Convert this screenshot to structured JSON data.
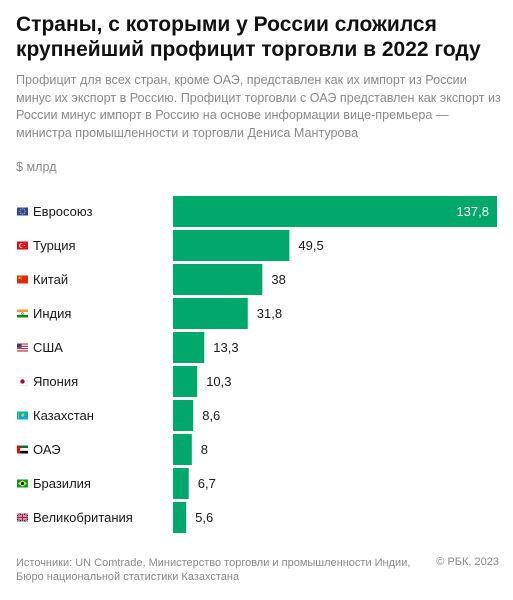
{
  "title": "Страны, с которыми у России сложился крупнейший профицит торговли в 2022 году",
  "subtitle": "Профицит для всех стран, кроме ОАЭ, представлен как их импорт из России минус их экспорт в Россию. Профицит торговли с ОАЭ представлен как экспорт из России минус импорт в Россию на основе информации вице-премьера — министра промышленности и торговли Дениса Мантурова",
  "unit_label": "$ млрд",
  "source": "Источники: UN Comtrade, Министерство торговли и промышленности Индии, Бюро национальной статистики Казахстана",
  "copyright": "© РБК, 2023",
  "colors": {
    "bar": "#00a86b"
  },
  "chart_data": {
    "type": "bar",
    "orientation": "horizontal",
    "categories": [
      "Евросоюз",
      "Турция",
      "Китай",
      "Индия",
      "США",
      "Япония",
      "Казахстан",
      "ОАЭ",
      "Бразилия",
      "Великобритания"
    ],
    "flag_icons": [
      "eu-flag-icon",
      "turkey-flag-icon",
      "china-flag-icon",
      "india-flag-icon",
      "usa-flag-icon",
      "japan-flag-icon",
      "kazakhstan-flag-icon",
      "uae-flag-icon",
      "brazil-flag-icon",
      "uk-flag-icon"
    ],
    "values": [
      137.8,
      49.5,
      38,
      31.8,
      13.3,
      10.3,
      8.6,
      8,
      6.7,
      5.6
    ],
    "value_labels": [
      "137,8",
      "49,5",
      "38",
      "31,8",
      "13,3",
      "10,3",
      "8,6",
      "8",
      "6,7",
      "5,6"
    ],
    "xlim": [
      0,
      137.8
    ],
    "grid": false
  }
}
